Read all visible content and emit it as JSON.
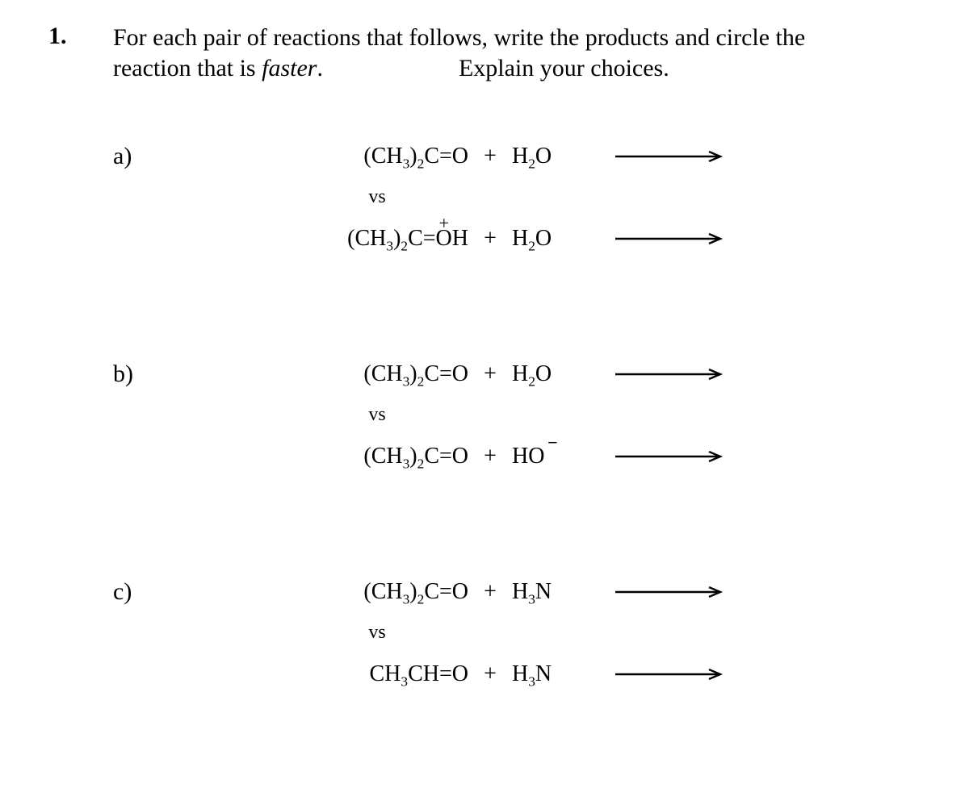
{
  "question": {
    "number": "1.",
    "line1": "For each pair of reactions that follows, write the products and circle the",
    "line2a": "reaction that is ",
    "line2_italic": "faster",
    "line2b": ".",
    "line2c": "Explain your choices."
  },
  "vs_label": "vs",
  "plus_label": "+",
  "parts": {
    "a": {
      "label": "a)",
      "r1_left_html": "(CH<sub>3</sub>)<sub>2</sub>C=O",
      "r1_right_html": "H<sub>2</sub>O",
      "r2_left_html": "(CH<sub>3</sub>)<sub>2</sub>C=OH",
      "r2_right_html": "H<sub>2</sub>O",
      "r2_left_charge": "+"
    },
    "b": {
      "label": "b)",
      "r1_left_html": "(CH<sub>3</sub>)<sub>2</sub>C=O",
      "r1_right_html": "H<sub>2</sub>O",
      "r2_left_html": "(CH<sub>3</sub>)<sub>2</sub>C=O",
      "r2_right_html": "HO",
      "r2_right_charge": "−"
    },
    "c": {
      "label": "c)",
      "r1_left_html": "(CH<sub>3</sub>)<sub>2</sub>C=O",
      "r1_right_html": "H<sub>3</sub>N",
      "r2_left_html": "CH<sub>3</sub>CH=O",
      "r2_right_html": "H<sub>3</sub>N"
    }
  },
  "arrow": {
    "stroke": "#000000",
    "width": 140,
    "height": 14,
    "stroke_width": 2.4
  }
}
